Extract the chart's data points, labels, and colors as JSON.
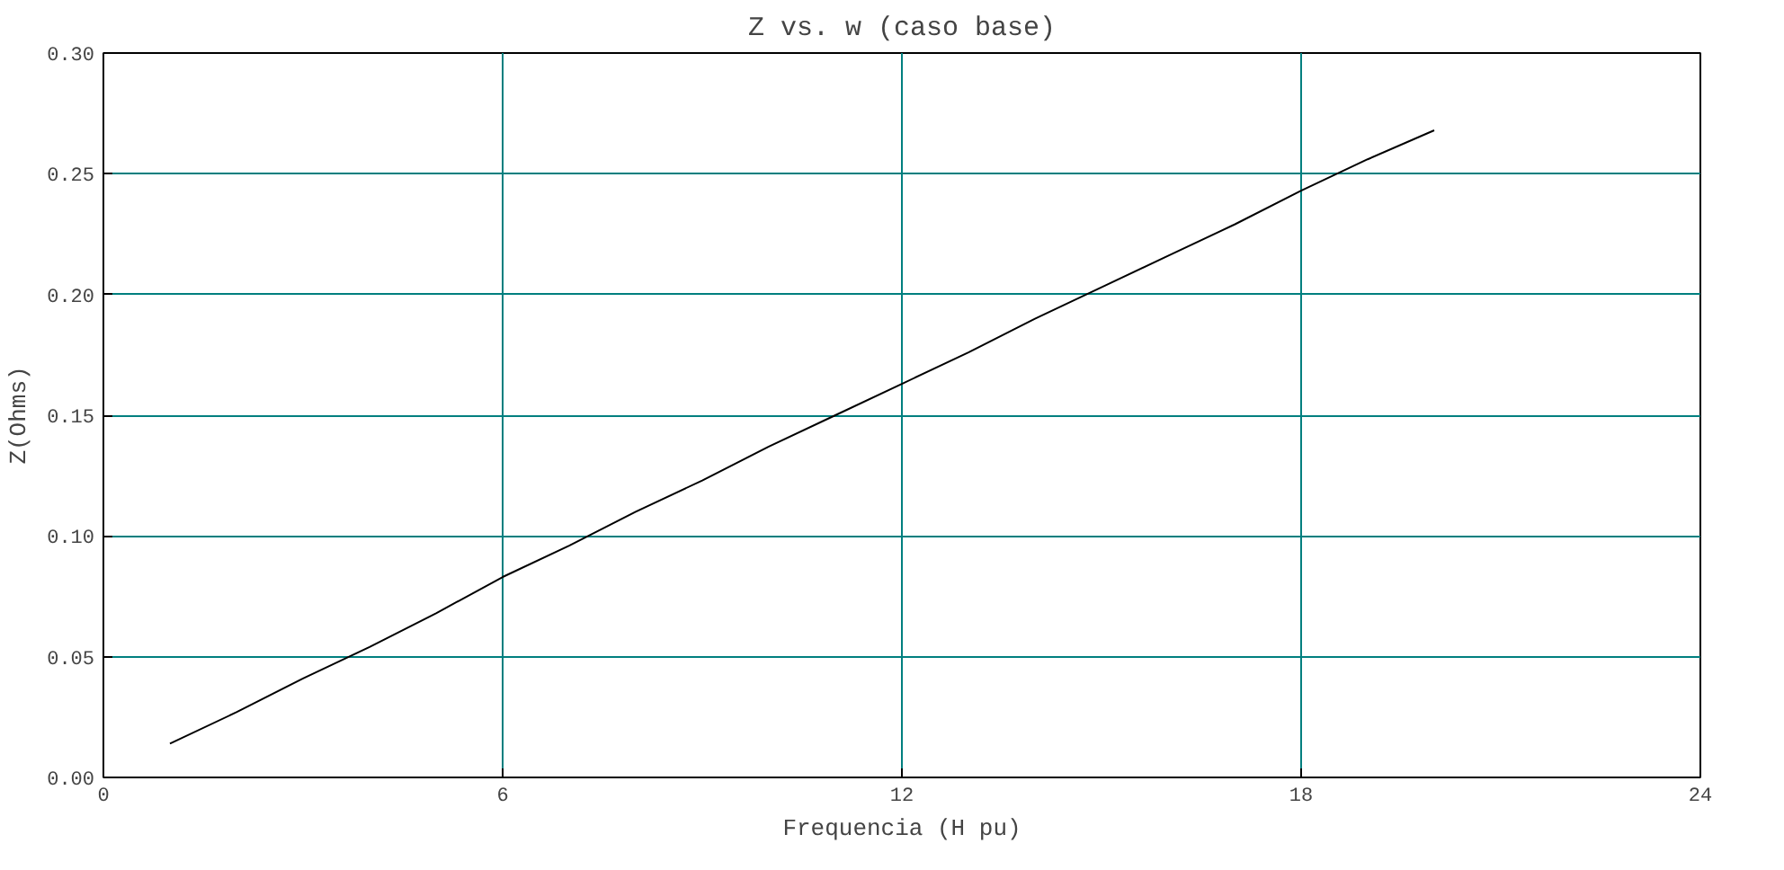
{
  "chart_data": {
    "type": "line",
    "title": "Z vs. w (caso base)",
    "xlabel": "Frequencia (H pu)",
    "ylabel": "Z(Ohms)",
    "series": [
      {
        "color": "#000000",
        "x": [
          1,
          2,
          3,
          4,
          5,
          6,
          7,
          8,
          9,
          10,
          11,
          12,
          13,
          14,
          15,
          16,
          17,
          18,
          19,
          20
        ],
        "values": [
          0.014,
          0.027,
          0.041,
          0.054,
          0.068,
          0.083,
          0.096,
          0.11,
          0.123,
          0.137,
          0.15,
          0.163,
          0.176,
          0.19,
          0.203,
          0.216,
          0.229,
          0.243,
          0.256,
          0.268
        ]
      }
    ],
    "xlim": [
      0,
      24
    ],
    "xticks": [
      0,
      6,
      12,
      18,
      24
    ],
    "ylim": [
      0,
      0.3
    ],
    "yticks": [
      {
        "value": 0,
        "label": "0.00"
      },
      {
        "value": 0.05,
        "label": "0.05"
      },
      {
        "value": 0.1,
        "label": "0.10"
      },
      {
        "value": 0.15,
        "label": "0.15"
      },
      {
        "value": 0.2,
        "label": "0.20"
      },
      {
        "value": 0.25,
        "label": "0.25"
      },
      {
        "value": 0.3,
        "label": "0.30"
      }
    ],
    "grid": true,
    "marker": "none",
    "line_style": "solid"
  }
}
